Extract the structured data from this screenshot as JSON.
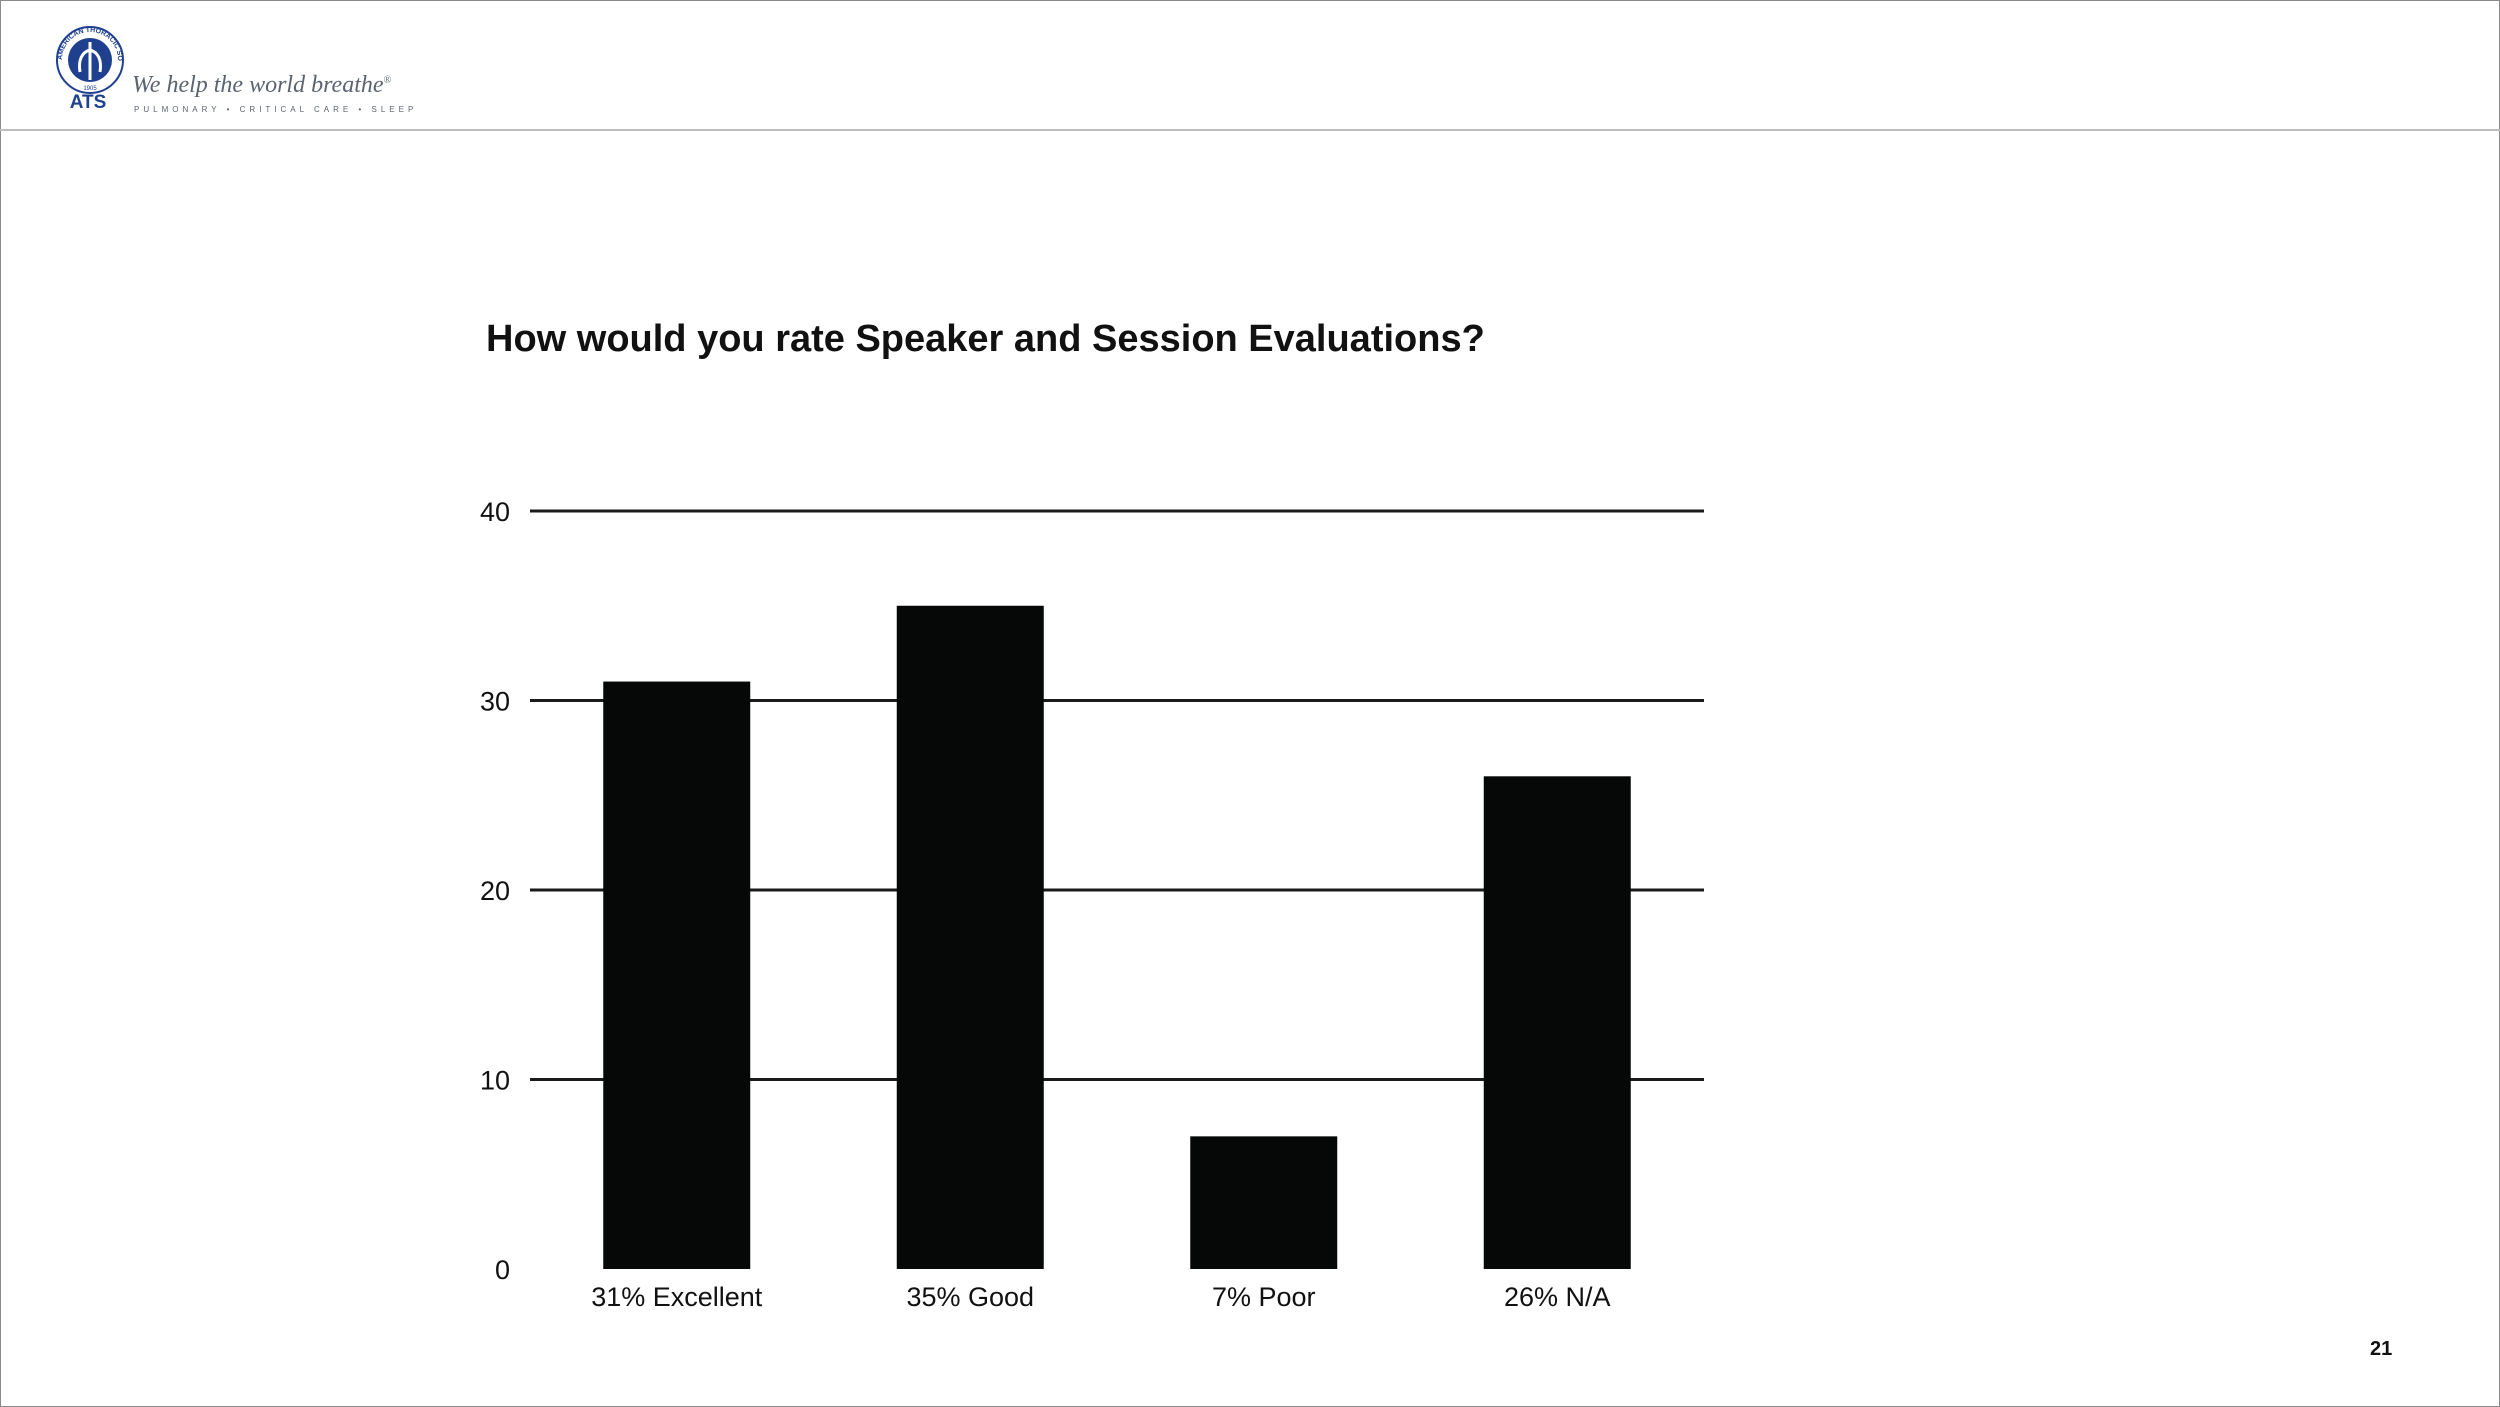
{
  "header": {
    "logo_text": "ATS",
    "logo_ring_text": "AMERICAN THORACIC SOCIETY",
    "logo_year": "1905",
    "tagline": "We help the world breathe",
    "tagline_mark": "®",
    "subtagline": "PULMONARY • CRITICAL CARE • SLEEP",
    "brand_color": "#1f3f8f"
  },
  "slide": {
    "page_number": "21"
  },
  "chart_data": {
    "type": "bar",
    "title": "How would you rate Speaker and Session Evaluations?",
    "categories": [
      "31% Excellent",
      "35% Good",
      "7% Poor",
      "26% N/A"
    ],
    "values": [
      31,
      35,
      7,
      26
    ],
    "y_ticks": [
      "0",
      "10",
      "20",
      "30",
      "40"
    ],
    "ylim": [
      0,
      40
    ],
    "xlabel": "",
    "ylabel": "",
    "grid": true,
    "bar_color": "#060807",
    "grid_color": "#1a1a1a"
  }
}
